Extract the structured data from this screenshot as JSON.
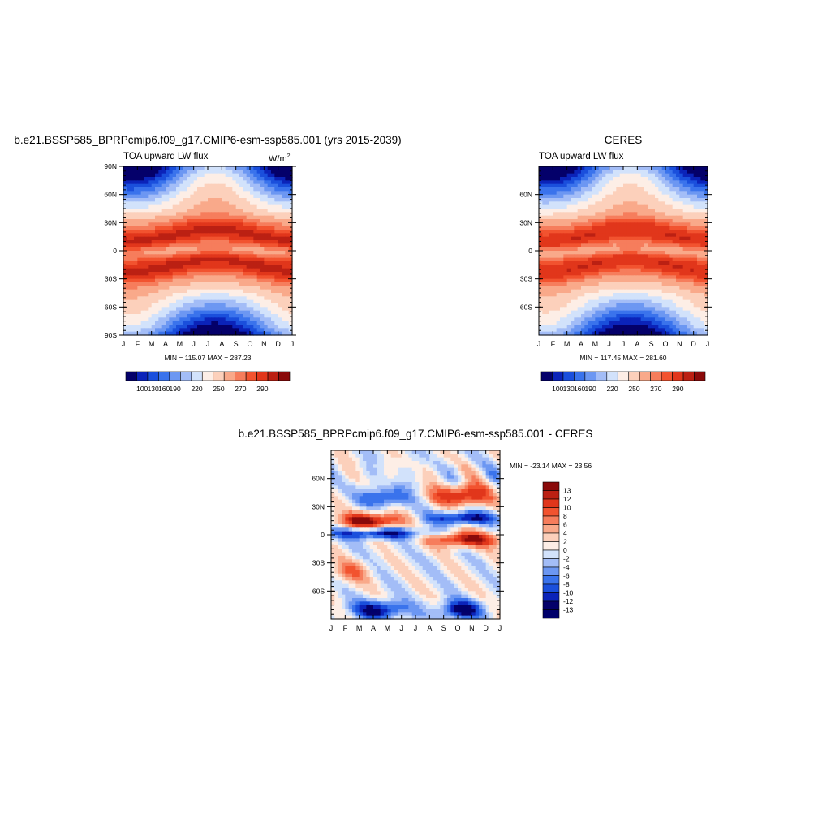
{
  "panel1": {
    "title": "b.e21.BSSP585_BPRPcmip6.f09_g17.CMIP6-esm-ssp585.001 (yrs 2015-2039)",
    "left_label": "TOA upward LW flux",
    "units_base": "W/m",
    "units_sup": "2",
    "stats": "MIN = 115.07 MAX = 287.23"
  },
  "panel2": {
    "title": "CERES",
    "left_label": "TOA upward LW flux",
    "stats": "MIN = 117.45 MAX = 281.60"
  },
  "panel3": {
    "title": "b.e21.BSSP585_BPRPcmip6.f09_g17.CMIP6-esm-ssp585.001 - CERES",
    "stats": "MIN = -23.14 MAX =  23.56"
  },
  "chart_data": [
    {
      "type": "heatmap",
      "title": "b.e21.BSSP585_BPRPcmip6.f09_g17.CMIP6-esm-ssp585.001 (yrs 2015-2039)",
      "x_tick_labels": [
        "J",
        "F",
        "M",
        "A",
        "M",
        "J",
        "J",
        "A",
        "S",
        "O",
        "N",
        "D",
        "J"
      ],
      "y_tick_labels": [
        "90N",
        "60N",
        "30N",
        "0",
        "30S",
        "60S",
        "90S"
      ],
      "ylim": [
        -90,
        90
      ],
      "colorbar_labels": [
        "100",
        "130",
        "160",
        "190",
        "220",
        "250",
        "270",
        "290"
      ],
      "colorbar_colors": [
        "#04006a",
        "#0b23b9",
        "#1a4fdc",
        "#3a73ec",
        "#6c97f2",
        "#a3bdf7",
        "#d2e2fb",
        "#fdeee6",
        "#fcd0bb",
        "#f9a98a",
        "#f67d5c",
        "#f2532f",
        "#e1361b",
        "#bb2013",
        "#8a0a0a"
      ],
      "min": 115.07,
      "max": 287.23,
      "units": "W/m2"
    },
    {
      "type": "heatmap",
      "title": "CERES",
      "x_tick_labels": [
        "J",
        "F",
        "M",
        "A",
        "M",
        "J",
        "J",
        "A",
        "S",
        "O",
        "N",
        "D",
        "J"
      ],
      "y_tick_labels": [
        "60N",
        "30N",
        "0",
        "30S",
        "60S"
      ],
      "colorbar_labels": [
        "100",
        "130",
        "160",
        "190",
        "220",
        "250",
        "270",
        "290"
      ],
      "colorbar_colors": [
        "#04006a",
        "#0b23b9",
        "#1a4fdc",
        "#3a73ec",
        "#6c97f2",
        "#a3bdf7",
        "#d2e2fb",
        "#fdeee6",
        "#fcd0bb",
        "#f9a98a",
        "#f67d5c",
        "#f2532f",
        "#e1361b",
        "#bb2013",
        "#8a0a0a"
      ],
      "min": 117.45,
      "max": 281.6
    },
    {
      "type": "heatmap",
      "title": "b.e21.BSSP585_BPRPcmip6.f09_g17.CMIP6-esm-ssp585.001 - CERES",
      "x_tick_labels": [
        "J",
        "F",
        "M",
        "A",
        "M",
        "J",
        "J",
        "A",
        "S",
        "O",
        "N",
        "D",
        "J"
      ],
      "y_tick_labels": [
        "60N",
        "30N",
        "0",
        "30S",
        "60S"
      ],
      "colorbar_labels": [
        "13",
        "12",
        "10",
        "8",
        "6",
        "4",
        "2",
        "0",
        "-2",
        "-4",
        "-6",
        "-8",
        "-10",
        "-12",
        "-13"
      ],
      "colorbar_colors": [
        "#8a0a0a",
        "#bb2013",
        "#e1361b",
        "#f2532f",
        "#f67d5c",
        "#f9a98a",
        "#fcd0bb",
        "#fdeee6",
        "#d2e2fb",
        "#a3bdf7",
        "#6c97f2",
        "#3a73ec",
        "#1a4fdc",
        "#0b23b9",
        "#04006a",
        "#00006a"
      ],
      "min": -23.14,
      "max": 23.56
    }
  ]
}
